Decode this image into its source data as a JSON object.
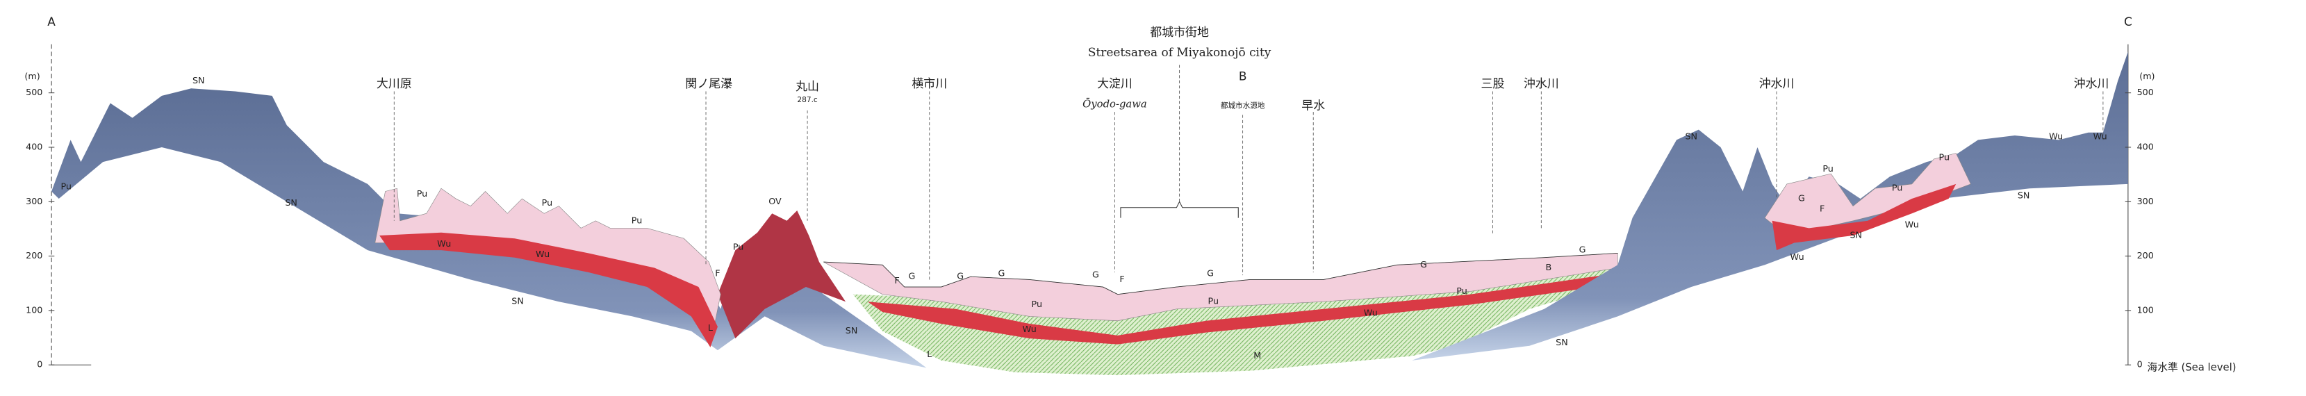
{
  "header": {
    "left_end": "A",
    "right_end": "C",
    "title": "都城市街地",
    "subtitle": "Streetsarea of Miyakonojō city",
    "point_b": "B"
  },
  "axis": {
    "unit": "(m)",
    "ylim": [
      0,
      500
    ],
    "ticks": [
      0,
      100,
      200,
      300,
      400,
      500
    ],
    "baseline_label": "海水準 (Sea level)"
  },
  "places": [
    {
      "label": "大川原"
    },
    {
      "label": "関ノ尾瀑"
    },
    {
      "label": "丸山"
    },
    {
      "label": "287.c"
    },
    {
      "label": "横市川"
    },
    {
      "label": "大淀川"
    },
    {
      "label": "Ōyodo-gawa"
    },
    {
      "label": "都城市水源地"
    },
    {
      "label": "早水"
    },
    {
      "label": "三股"
    },
    {
      "label": "沖水川"
    },
    {
      "label": "沖水川"
    },
    {
      "label": "沖水川"
    }
  ],
  "units": [
    "SN",
    "SN",
    "SN",
    "SN",
    "SN",
    "SN",
    "SN",
    "SN",
    "Pu",
    "Pu",
    "Pu",
    "Pu",
    "Pu",
    "Pu",
    "Pu",
    "Pu",
    "Pu",
    "Pu",
    "Pu",
    "Wu",
    "Wu",
    "Wu",
    "Wu",
    "Wu",
    "Wu",
    "Wu",
    "Wu",
    "G",
    "G",
    "G",
    "G",
    "G",
    "G",
    "G",
    "G",
    "F",
    "F",
    "F",
    "F",
    "B",
    "L",
    "L",
    "OV",
    "M"
  ]
}
